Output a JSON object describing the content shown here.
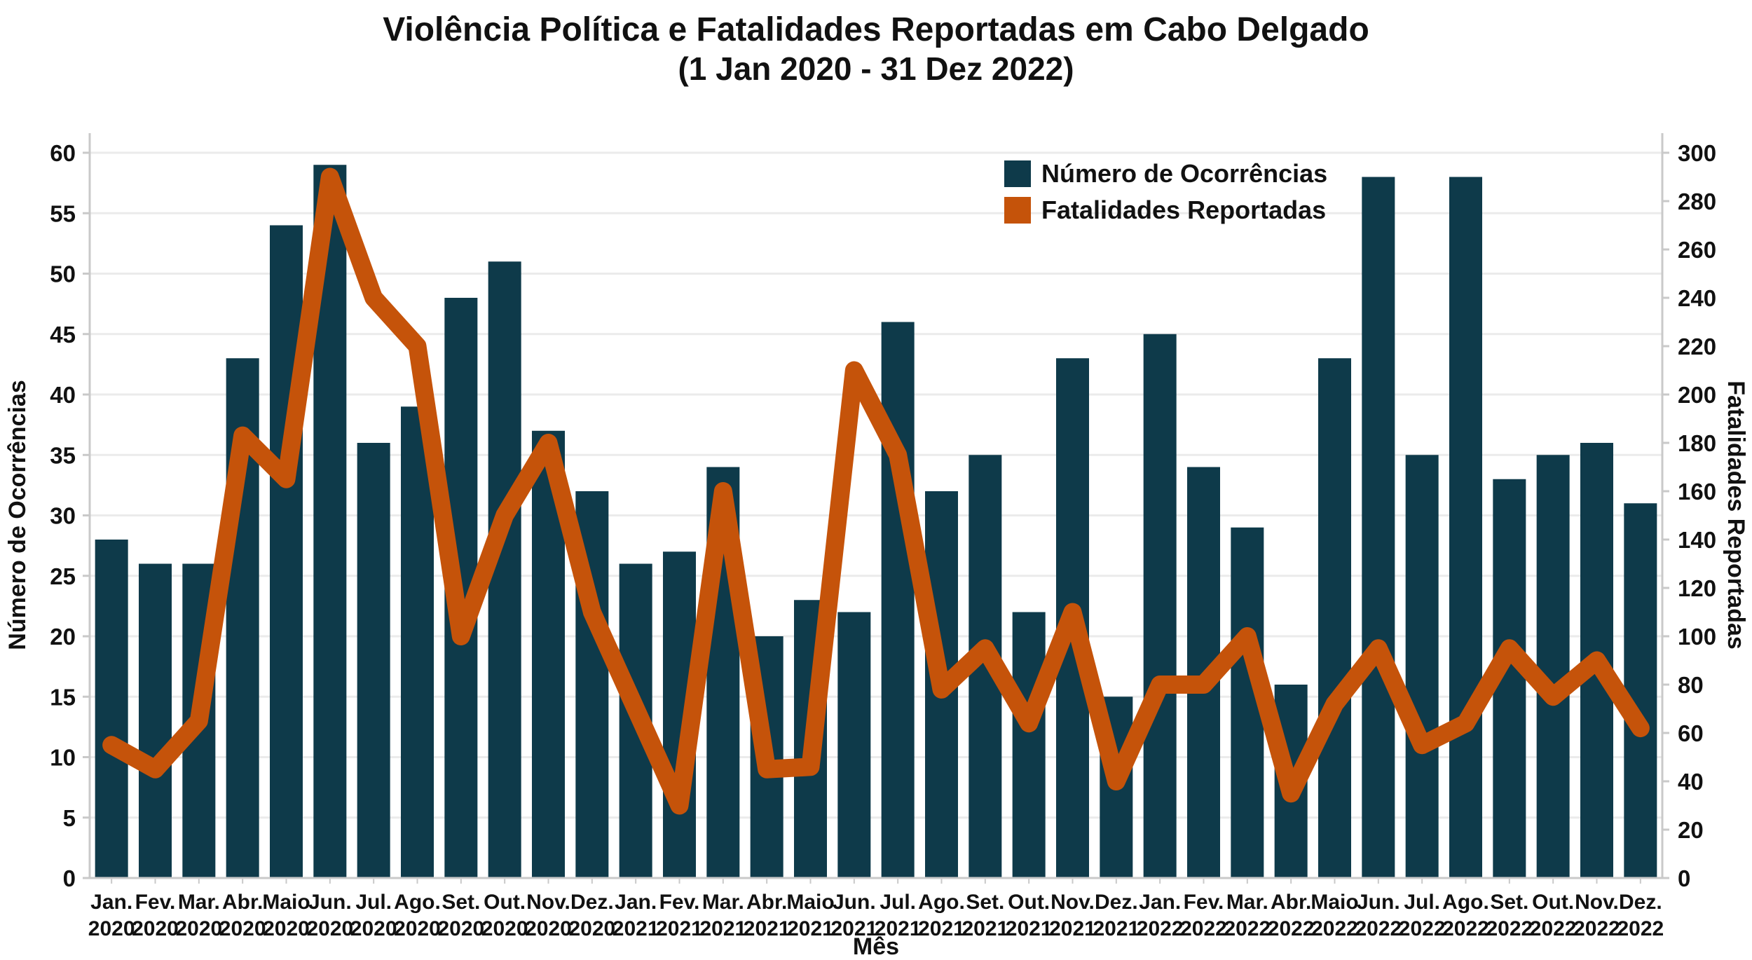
{
  "title": {
    "line1": "Violência Política e Fatalidades Reportadas em Cabo Delgado",
    "line2": "(1 Jan 2020 - 31 Dez 2022)"
  },
  "legend": {
    "items": [
      {
        "label": "Número de Ocorrências",
        "color": "#0e3a4a",
        "marker": "square"
      },
      {
        "label": "Fatalidades Reportadas",
        "color": "#c5530a",
        "marker": "square"
      }
    ]
  },
  "colors": {
    "bar": "#0e3a4a",
    "line": "#c5530a",
    "grid": "#ebebeb",
    "spine": "#c9c9c9",
    "tick": "#c9c9c9",
    "text": "#111111"
  },
  "chart_data": {
    "type": "bar+line",
    "title": "Violência Política e Fatalidades Reportadas em Cabo Delgado (1 Jan 2020 - 31 Dez 2022)",
    "xlabel": "Mês",
    "grid": true,
    "legend_position": "top-right",
    "categories": [
      {
        "month": "Jan.",
        "year": "2020"
      },
      {
        "month": "Fev.",
        "year": "2020"
      },
      {
        "month": "Mar.",
        "year": "2020"
      },
      {
        "month": "Abr.",
        "year": "2020"
      },
      {
        "month": "Maio",
        "year": "2020"
      },
      {
        "month": "Jun.",
        "year": "2020"
      },
      {
        "month": "Jul.",
        "year": "2020"
      },
      {
        "month": "Ago.",
        "year": "2020"
      },
      {
        "month": "Set.",
        "year": "2020"
      },
      {
        "month": "Out.",
        "year": "2020"
      },
      {
        "month": "Nov.",
        "year": "2020"
      },
      {
        "month": "Dez.",
        "year": "2020"
      },
      {
        "month": "Jan.",
        "year": "2021"
      },
      {
        "month": "Fev.",
        "year": "2021"
      },
      {
        "month": "Mar.",
        "year": "2021"
      },
      {
        "month": "Abr.",
        "year": "2021"
      },
      {
        "month": "Maio",
        "year": "2021"
      },
      {
        "month": "Jun.",
        "year": "2021"
      },
      {
        "month": "Jul.",
        "year": "2021"
      },
      {
        "month": "Ago.",
        "year": "2021"
      },
      {
        "month": "Set.",
        "year": "2021"
      },
      {
        "month": "Out.",
        "year": "2021"
      },
      {
        "month": "Nov.",
        "year": "2021"
      },
      {
        "month": "Dez.",
        "year": "2021"
      },
      {
        "month": "Jan.",
        "year": "2022"
      },
      {
        "month": "Fev.",
        "year": "2022"
      },
      {
        "month": "Mar.",
        "year": "2022"
      },
      {
        "month": "Abr.",
        "year": "2022"
      },
      {
        "month": "Maio",
        "year": "2022"
      },
      {
        "month": "Jun.",
        "year": "2022"
      },
      {
        "month": "Jul.",
        "year": "2022"
      },
      {
        "month": "Ago.",
        "year": "2022"
      },
      {
        "month": "Set.",
        "year": "2022"
      },
      {
        "month": "Out.",
        "year": "2022"
      },
      {
        "month": "Nov.",
        "year": "2022"
      },
      {
        "month": "Dez.",
        "year": "2022"
      }
    ],
    "series": [
      {
        "name": "Número de Ocorrências",
        "type": "bar",
        "axis": "left",
        "color": "#0e3a4a",
        "values": [
          28,
          26,
          26,
          43,
          54,
          59,
          36,
          39,
          48,
          51,
          37,
          32,
          26,
          27,
          34,
          20,
          23,
          22,
          46,
          32,
          35,
          22,
          43,
          15,
          45,
          34,
          29,
          16,
          43,
          58,
          35,
          58,
          33,
          35,
          36,
          31
        ]
      },
      {
        "name": "Fatalidades Reportadas",
        "type": "line",
        "axis": "right",
        "color": "#c5530a",
        "values": [
          55,
          45,
          65,
          183,
          165,
          290,
          240,
          220,
          100,
          150,
          180,
          110,
          70,
          30,
          160,
          45,
          46,
          210,
          175,
          78,
          95,
          64,
          110,
          40,
          80,
          80,
          100,
          35,
          72,
          95,
          55,
          64,
          95,
          75,
          90,
          62
        ]
      }
    ],
    "left_axis": {
      "title": "Número de Ocorrências",
      "min": 0,
      "max": 60,
      "step": 5
    },
    "right_axis": {
      "title": "Fatalidades Reportadas",
      "min": 0,
      "max": 300,
      "step": 20
    }
  }
}
